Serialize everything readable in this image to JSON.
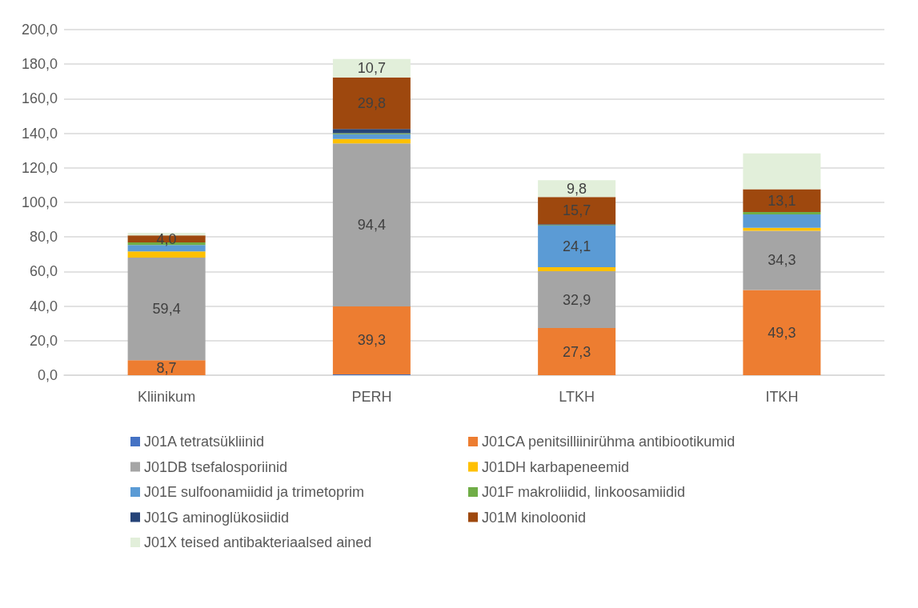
{
  "chart_data": {
    "type": "bar",
    "stacked": true,
    "categories": [
      "Kliinikum",
      "PERH",
      "LTKH",
      "ITKH"
    ],
    "series": [
      {
        "name": "J01A tetratsükliinid",
        "color": "#4472c4",
        "values": [
          0,
          0.5,
          0,
          0
        ],
        "value_labels": [
          null,
          null,
          null,
          null
        ]
      },
      {
        "name": "J01CA penitsilliinirühma antibiootikumid",
        "color": "#ed7d31",
        "values": [
          8.7,
          39.3,
          27.3,
          49.3
        ],
        "value_labels": [
          "8,7",
          "39,3",
          "27,3",
          "49,3"
        ]
      },
      {
        "name": "J01DB tsefalosporiinid",
        "color": "#a5a5a5",
        "values": [
          59.4,
          94.4,
          32.9,
          34.3
        ],
        "value_labels": [
          "59,4",
          "94,4",
          "32,9",
          "34,3"
        ]
      },
      {
        "name": "J01DH karbapeneemid",
        "color": "#ffc000",
        "values": [
          3.5,
          2.5,
          2.3,
          1.7
        ],
        "value_labels": [
          null,
          null,
          null,
          null
        ]
      },
      {
        "name": "J01E sulfoonamiidid ja trimetoprim",
        "color": "#5b9bd5",
        "values": [
          3.8,
          2.8,
          24.1,
          7.7
        ],
        "value_labels": [
          null,
          null,
          "24,1",
          null
        ]
      },
      {
        "name": "J01F makroliidid, linkoosamiidid",
        "color": "#70ad47",
        "values": [
          1.5,
          0.5,
          0.3,
          1.5
        ],
        "value_labels": [
          null,
          null,
          null,
          null
        ]
      },
      {
        "name": "J01G aminoglükosiidid",
        "color": "#264478",
        "values": [
          0,
          2.5,
          0.5,
          0
        ],
        "value_labels": [
          null,
          null,
          null,
          null
        ]
      },
      {
        "name": "J01M kinoloonid",
        "color": "#9e480e",
        "values": [
          4.0,
          29.8,
          15.7,
          13.1
        ],
        "value_labels": [
          "4,0",
          "29,8",
          "15,7",
          "13,1"
        ]
      },
      {
        "name": "J01X teised antibakteriaalsed ained",
        "color": "#e2efda",
        "values": [
          1.5,
          10.7,
          9.8,
          20.7
        ],
        "value_labels": [
          null,
          "10,7",
          "9,8",
          null
        ]
      }
    ],
    "ylim": [
      0,
      200
    ],
    "yticks": [
      {
        "value": 0,
        "label": "0,0"
      },
      {
        "value": 20,
        "label": "20,0"
      },
      {
        "value": 40,
        "label": "40,0"
      },
      {
        "value": 60,
        "label": "60,0"
      },
      {
        "value": 80,
        "label": "80,0"
      },
      {
        "value": 100,
        "label": "100,0"
      },
      {
        "value": 120,
        "label": "120,0"
      },
      {
        "value": 140,
        "label": "140,0"
      },
      {
        "value": 160,
        "label": "160,0"
      },
      {
        "value": 180,
        "label": "180,0"
      },
      {
        "value": 200,
        "label": "200,0"
      }
    ],
    "grid": "y",
    "legend": "bottom"
  }
}
